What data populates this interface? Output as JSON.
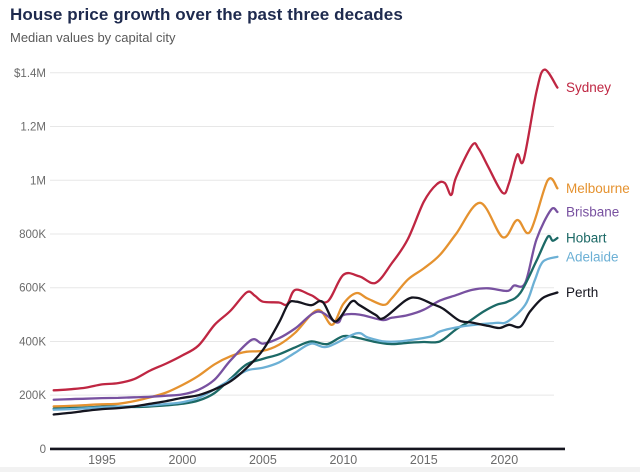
{
  "header": {
    "title": "House price growth over the past three decades",
    "subtitle": "Median values by capital city"
  },
  "chart_data": {
    "type": "line",
    "title": "House price growth over the past three decades",
    "subtitle": "Median values by capital city",
    "values_unit": "thousands of dollars (AUD)",
    "x_range": [
      1992,
      2023.4
    ],
    "ylim_thousands": [
      0,
      1400
    ],
    "grid": "horizontal",
    "legend_position": "right-end-of-line-labels",
    "axis_color": "#15151f",
    "grid_color": "#e7e7e7",
    "tick_text_color": "#6b6b6b",
    "y_ticks": [
      {
        "value": 1400,
        "label": "$1.4M"
      },
      {
        "value": 1200,
        "label": "1.2M"
      },
      {
        "value": 1000,
        "label": "1M"
      },
      {
        "value": 800,
        "label": "800K"
      },
      {
        "value": 600,
        "label": "600K"
      },
      {
        "value": 400,
        "label": "400K"
      },
      {
        "value": 200,
        "label": "200K"
      },
      {
        "value": 0,
        "label": "0"
      }
    ],
    "x_ticks": [
      {
        "value": 1995,
        "label": "1995"
      },
      {
        "value": 2000,
        "label": "2000"
      },
      {
        "value": 2005,
        "label": "2005"
      },
      {
        "value": 2010,
        "label": "2010"
      },
      {
        "value": 2015,
        "label": "2015"
      },
      {
        "value": 2020,
        "label": "2020"
      }
    ],
    "series": [
      {
        "name": "Sydney",
        "color": "#bf2642",
        "points": [
          [
            1992,
            218
          ],
          [
            1993,
            222
          ],
          [
            1994,
            228
          ],
          [
            1995,
            240
          ],
          [
            1996,
            245
          ],
          [
            1997,
            260
          ],
          [
            1998,
            292
          ],
          [
            1999,
            318
          ],
          [
            2000,
            348
          ],
          [
            2001,
            385
          ],
          [
            2002,
            462
          ],
          [
            2003,
            515
          ],
          [
            2004,
            583
          ],
          [
            2004.5,
            570
          ],
          [
            2005,
            548
          ],
          [
            2006,
            545
          ],
          [
            2006.5,
            538
          ],
          [
            2007,
            592
          ],
          [
            2008,
            572
          ],
          [
            2009,
            548
          ],
          [
            2010,
            648
          ],
          [
            2011,
            642
          ],
          [
            2012,
            618
          ],
          [
            2013,
            690
          ],
          [
            2014,
            780
          ],
          [
            2015,
            920
          ],
          [
            2015.8,
            985
          ],
          [
            2016.3,
            990
          ],
          [
            2016.7,
            945
          ],
          [
            2017,
            1010
          ],
          [
            2018,
            1130
          ],
          [
            2018.4,
            1118
          ],
          [
            2019,
            1050
          ],
          [
            2019.9,
            953
          ],
          [
            2020.3,
            990
          ],
          [
            2020.8,
            1095
          ],
          [
            2021.2,
            1075
          ],
          [
            2022,
            1330
          ],
          [
            2022.5,
            1412
          ],
          [
            2023.3,
            1345
          ]
        ]
      },
      {
        "name": "Melbourne",
        "color": "#e5922f",
        "points": [
          [
            1992,
            158
          ],
          [
            1993,
            160
          ],
          [
            1994,
            163
          ],
          [
            1995,
            166
          ],
          [
            1996,
            168
          ],
          [
            1997,
            178
          ],
          [
            1998,
            192
          ],
          [
            1999,
            210
          ],
          [
            2000,
            238
          ],
          [
            2001,
            272
          ],
          [
            2002,
            315
          ],
          [
            2003,
            345
          ],
          [
            2004,
            362
          ],
          [
            2005,
            365
          ],
          [
            2006,
            388
          ],
          [
            2007,
            432
          ],
          [
            2008.4,
            517
          ],
          [
            2009.3,
            462
          ],
          [
            2010,
            540
          ],
          [
            2010.8,
            580
          ],
          [
            2011.5,
            560
          ],
          [
            2012.5,
            536
          ],
          [
            2013,
            560
          ],
          [
            2014,
            630
          ],
          [
            2015,
            672
          ],
          [
            2016,
            722
          ],
          [
            2017,
            800
          ],
          [
            2018.5,
            916
          ],
          [
            2019.9,
            788
          ],
          [
            2020.8,
            852
          ],
          [
            2021.6,
            808
          ],
          [
            2022.7,
            1000
          ],
          [
            2023.3,
            970
          ]
        ]
      },
      {
        "name": "Brisbane",
        "color": "#7851a0",
        "points": [
          [
            1992,
            183
          ],
          [
            1993,
            185
          ],
          [
            1994,
            187
          ],
          [
            1995,
            189
          ],
          [
            1996,
            190
          ],
          [
            1997,
            192
          ],
          [
            1998,
            194
          ],
          [
            1999,
            198
          ],
          [
            2000,
            203
          ],
          [
            2001,
            220
          ],
          [
            2002,
            258
          ],
          [
            2003,
            330
          ],
          [
            2004.3,
            406
          ],
          [
            2005,
            392
          ],
          [
            2006,
            412
          ],
          [
            2007,
            448
          ],
          [
            2008.4,
            511
          ],
          [
            2009.6,
            470
          ],
          [
            2010,
            498
          ],
          [
            2011,
            500
          ],
          [
            2012.4,
            480
          ],
          [
            2013,
            488
          ],
          [
            2014,
            498
          ],
          [
            2015,
            518
          ],
          [
            2016,
            552
          ],
          [
            2017,
            572
          ],
          [
            2018,
            592
          ],
          [
            2019,
            598
          ],
          [
            2020.2,
            588
          ],
          [
            2020.6,
            608
          ],
          [
            2021.3,
            618
          ],
          [
            2022,
            780
          ],
          [
            2022.9,
            890
          ],
          [
            2023.3,
            882
          ]
        ]
      },
      {
        "name": "Hobart",
        "color": "#1c6966",
        "points": [
          [
            1992,
            150
          ],
          [
            1993,
            152
          ],
          [
            1994,
            154
          ],
          [
            1995,
            157
          ],
          [
            1996,
            158
          ],
          [
            1997,
            156
          ],
          [
            1998,
            158
          ],
          [
            1999,
            162
          ],
          [
            2000,
            168
          ],
          [
            2001,
            180
          ],
          [
            2002,
            208
          ],
          [
            2003,
            262
          ],
          [
            2004,
            315
          ],
          [
            2005,
            335
          ],
          [
            2006,
            352
          ],
          [
            2007,
            378
          ],
          [
            2008,
            400
          ],
          [
            2009,
            390
          ],
          [
            2010,
            420
          ],
          [
            2011,
            412
          ],
          [
            2012,
            398
          ],
          [
            2013,
            390
          ],
          [
            2014,
            395
          ],
          [
            2015,
            398
          ],
          [
            2016,
            400
          ],
          [
            2017,
            445
          ],
          [
            2017.7,
            470
          ],
          [
            2018.7,
            511
          ],
          [
            2019.5,
            536
          ],
          [
            2020.2,
            548
          ],
          [
            2021,
            581
          ],
          [
            2022,
            700
          ],
          [
            2022.7,
            789
          ],
          [
            2023,
            775
          ],
          [
            2023.3,
            785
          ]
        ]
      },
      {
        "name": "Adelaide",
        "color": "#6cb0d5",
        "points": [
          [
            1992,
            146
          ],
          [
            1993,
            148
          ],
          [
            1994,
            151
          ],
          [
            1995,
            155
          ],
          [
            1996,
            157
          ],
          [
            1997,
            159
          ],
          [
            1998,
            162
          ],
          [
            1999,
            167
          ],
          [
            2000,
            174
          ],
          [
            2001,
            190
          ],
          [
            2002,
            222
          ],
          [
            2003,
            258
          ],
          [
            2004,
            292
          ],
          [
            2005,
            302
          ],
          [
            2006,
            322
          ],
          [
            2007,
            358
          ],
          [
            2008,
            392
          ],
          [
            2009,
            380
          ],
          [
            2010.8,
            430
          ],
          [
            2011.5,
            415
          ],
          [
            2012.5,
            400
          ],
          [
            2013.5,
            400
          ],
          [
            2014.5,
            408
          ],
          [
            2015.5,
            420
          ],
          [
            2016,
            437
          ],
          [
            2017,
            452
          ],
          [
            2018,
            461
          ],
          [
            2019.5,
            469
          ],
          [
            2020.2,
            474
          ],
          [
            2021.3,
            536
          ],
          [
            2021.9,
            629
          ],
          [
            2022.4,
            697
          ],
          [
            2023.3,
            715
          ]
        ]
      },
      {
        "name": "Perth",
        "color": "#15151f",
        "points": [
          [
            1992,
            128
          ],
          [
            1993,
            134
          ],
          [
            1994,
            142
          ],
          [
            1995,
            148
          ],
          [
            1996,
            152
          ],
          [
            1997,
            158
          ],
          [
            1998,
            168
          ],
          [
            1999,
            178
          ],
          [
            2000,
            190
          ],
          [
            2001,
            200
          ],
          [
            2002,
            222
          ],
          [
            2003,
            252
          ],
          [
            2004,
            302
          ],
          [
            2005,
            368
          ],
          [
            2006,
            470
          ],
          [
            2006.6,
            542
          ],
          [
            2007.1,
            548
          ],
          [
            2008,
            535
          ],
          [
            2008.7,
            548
          ],
          [
            2009.5,
            474
          ],
          [
            2010.5,
            548
          ],
          [
            2011,
            535
          ],
          [
            2012,
            499
          ],
          [
            2012.5,
            487
          ],
          [
            2013.9,
            554
          ],
          [
            2014.6,
            562
          ],
          [
            2015.5,
            540
          ],
          [
            2016.2,
            522
          ],
          [
            2017.2,
            478
          ],
          [
            2018,
            470
          ],
          [
            2019,
            458
          ],
          [
            2019.7,
            450
          ],
          [
            2020.3,
            462
          ],
          [
            2021,
            455
          ],
          [
            2021.6,
            511
          ],
          [
            2022.4,
            562
          ],
          [
            2023.3,
            582
          ]
        ]
      }
    ]
  }
}
